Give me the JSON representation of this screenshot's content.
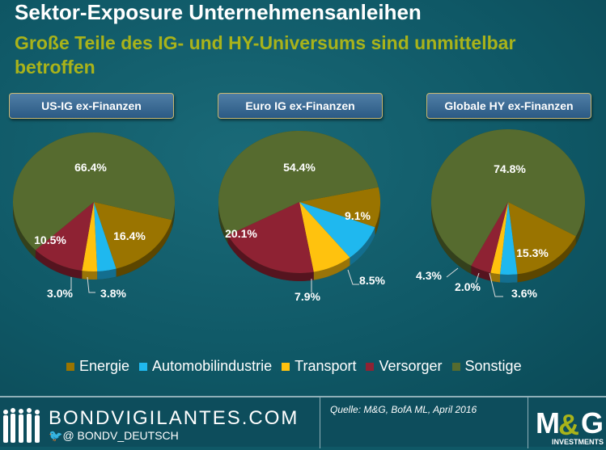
{
  "header": {
    "title": "Sektor-Exposure Unternehmensanleihen",
    "subtitle": "Große Teile des IG- und HY-Universums sind unmittelbar betroffen"
  },
  "chart_data": [
    {
      "type": "pie",
      "title": "US-IG ex-Finanzen",
      "categories": [
        "Energie",
        "Automobilindustrie",
        "Transport",
        "Versorger",
        "Sonstige"
      ],
      "values": [
        16.4,
        3.8,
        3.0,
        10.5,
        66.4
      ],
      "labels": [
        "16.4%",
        "3.8%",
        "3.0%",
        "10.5%",
        "66.4%"
      ]
    },
    {
      "type": "pie",
      "title": "Euro IG ex-Finanzen",
      "categories": [
        "Energie",
        "Automobilindustrie",
        "Transport",
        "Versorger",
        "Sonstige"
      ],
      "values": [
        9.1,
        8.5,
        7.9,
        20.1,
        54.4
      ],
      "labels": [
        "9.1%",
        "8.5%",
        "7.9%",
        "20.1%",
        "54.4%"
      ]
    },
    {
      "type": "pie",
      "title": "Globale HY ex-Finanzen",
      "categories": [
        "Energie",
        "Automobilindustrie",
        "Transport",
        "Versorger",
        "Sonstige"
      ],
      "values": [
        15.3,
        3.6,
        2.0,
        4.3,
        74.8
      ],
      "labels": [
        "15.3%",
        "3.6%",
        "2.0%",
        "4.3%",
        "74.8%"
      ]
    }
  ],
  "legend": [
    {
      "label": "Energie",
      "color": "#9a7400"
    },
    {
      "label": "Automobilindustrie",
      "color": "#1fb8ef"
    },
    {
      "label": "Transport",
      "color": "#ffc20e"
    },
    {
      "label": "Versorger",
      "color": "#8e2233"
    },
    {
      "label": "Sonstige",
      "color": "#566b2f"
    }
  ],
  "footer": {
    "site": "BONDVIGILANTES.COM",
    "twitter": "@ BONDV_DEUTSCH",
    "source": "Quelle: M&G, BofA ML, April 2016",
    "logo": "M&G",
    "logo_sub": "INVESTMENTS"
  }
}
